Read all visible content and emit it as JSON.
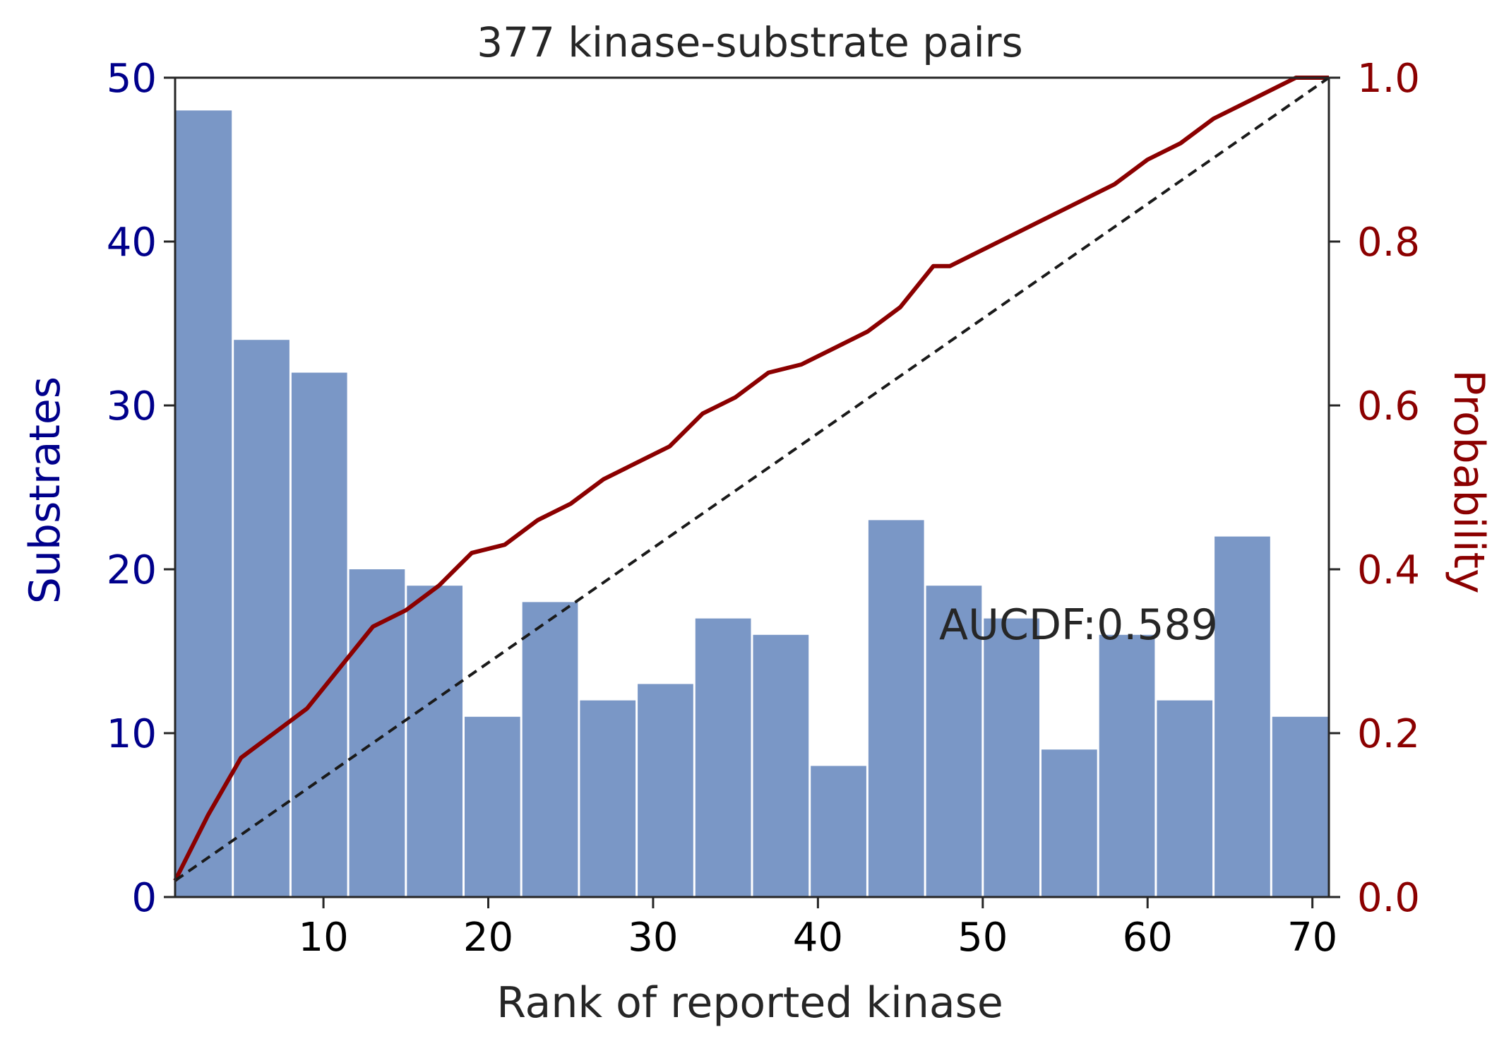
{
  "chart_data": {
    "type": "bar",
    "title": "377 kinase-substrate pairs",
    "xlabel": "Rank of reported kinase",
    "ylabel": "Substrates",
    "y2label": "Probability",
    "annotation": "AUCDF:0.589",
    "xlim": [
      1,
      71
    ],
    "ylim": [
      0,
      50
    ],
    "y2lim": [
      0,
      1
    ],
    "x_ticks": [
      10,
      20,
      30,
      40,
      50,
      60,
      70
    ],
    "y_ticks": [
      0,
      10,
      20,
      30,
      40,
      50
    ],
    "y2_ticks": [
      "0.0",
      "0.2",
      "0.4",
      "0.6",
      "0.8",
      "1.0"
    ],
    "grid": false,
    "histogram": {
      "bin_edges": [
        1,
        4.5,
        8,
        11.5,
        15,
        18.5,
        22,
        25.5,
        29,
        32.5,
        36,
        39.5,
        43,
        46.5,
        50,
        53.5,
        57,
        60.5,
        64,
        67.5,
        71
      ],
      "counts": [
        48,
        34,
        32,
        20,
        19,
        11,
        18,
        12,
        13,
        17,
        16,
        8,
        23,
        19,
        17,
        9,
        16,
        12,
        22,
        11
      ],
      "color": "#7a97c6"
    },
    "series": [
      {
        "type": "line",
        "axis": "right",
        "color": "#8b0000",
        "x": [
          1,
          3,
          5,
          7,
          9,
          11,
          13,
          15,
          17,
          19,
          21,
          23,
          25,
          27,
          29,
          31,
          33,
          35,
          37,
          39,
          41,
          43,
          45,
          47,
          48,
          49,
          50,
          51,
          52,
          54,
          56,
          58,
          60,
          62,
          64,
          66,
          68,
          69,
          70,
          71
        ],
        "y": [
          0.02,
          0.1,
          0.17,
          0.2,
          0.23,
          0.28,
          0.33,
          0.35,
          0.38,
          0.42,
          0.43,
          0.46,
          0.48,
          0.51,
          0.53,
          0.55,
          0.59,
          0.61,
          0.64,
          0.65,
          0.67,
          0.69,
          0.72,
          0.77,
          0.77,
          0.78,
          0.79,
          0.8,
          0.81,
          0.83,
          0.85,
          0.87,
          0.9,
          0.92,
          0.95,
          0.97,
          0.99,
          1.0,
          1.0,
          1.0
        ]
      },
      {
        "type": "line",
        "axis": "right",
        "color": "#1a1a1a",
        "dashed": true,
        "x": [
          1,
          71
        ],
        "y": [
          0.02,
          1.0
        ]
      }
    ],
    "colors": {
      "left_axis": "#00008b",
      "right_axis": "#8b0000",
      "x_tick": "#000000",
      "frame": "#262626"
    }
  }
}
